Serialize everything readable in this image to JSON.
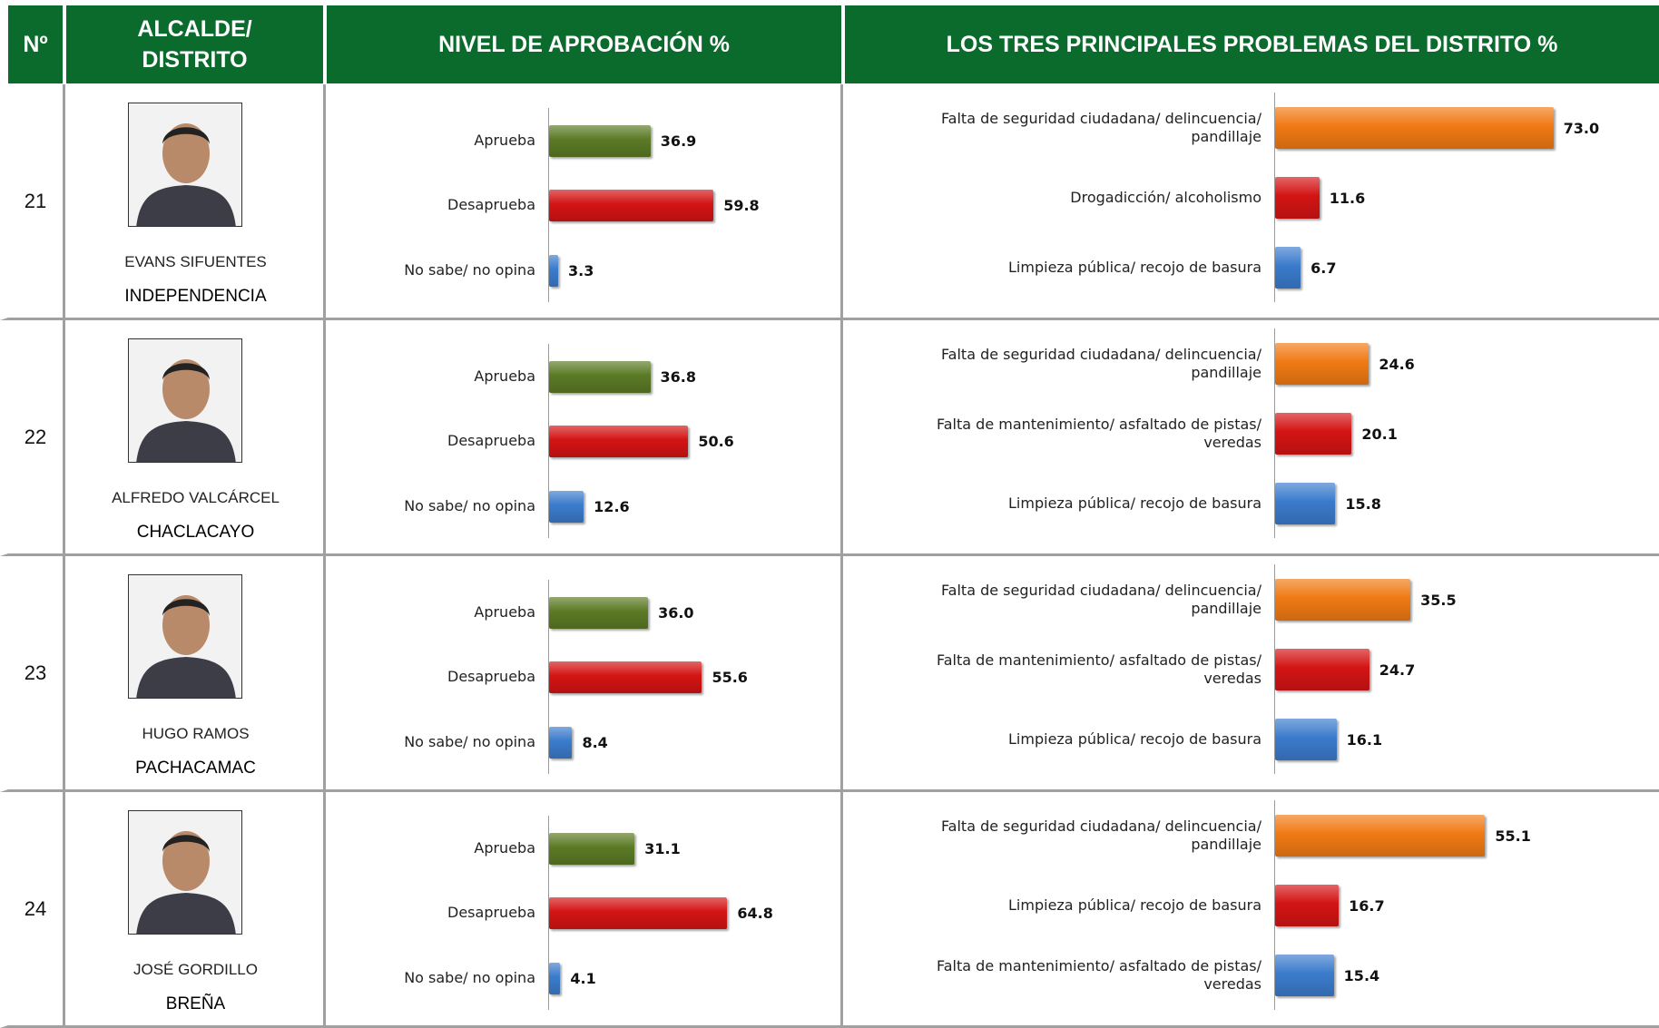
{
  "header": {
    "number": "Nº",
    "mayor": "ALCALDE/ DISTRITO",
    "approval": "NIVEL DE APROBACIÓN  %",
    "problems": "LOS TRES PRINCIPALES PROBLEMAS DEL DISTRITO  %"
  },
  "rows": [
    {
      "number": "21",
      "name": "EVANS SIFUENTES",
      "district": "INDEPENDENCIA",
      "approval": {
        "type": "bar",
        "categories": [
          "Aprueba",
          "Desaprueba",
          "No sabe/ no opina"
        ],
        "values": [
          36.9,
          59.8,
          3.3
        ],
        "value_labels": [
          "36.9",
          "59.8",
          "3.3"
        ],
        "colors": [
          "#5b7a25",
          "#d41414",
          "#3b7bcc"
        ]
      },
      "problems": {
        "type": "bar",
        "categories": [
          "Falta de seguridad ciudadana/ delincuencia/ pandillaje",
          "Drogadicción/ alcoholismo",
          "Limpieza pública/ recojo de basura"
        ],
        "values": [
          73.0,
          11.6,
          6.7
        ],
        "value_labels": [
          "73.0",
          "11.6",
          "6.7"
        ],
        "colors": [
          "#f07a14",
          "#d41414",
          "#3b7bcc"
        ]
      }
    },
    {
      "number": "22",
      "name": "ALFREDO VALCÁRCEL",
      "district": "CHACLACAYO",
      "approval": {
        "type": "bar",
        "categories": [
          "Aprueba",
          "Desaprueba",
          "No sabe/ no opina"
        ],
        "values": [
          36.8,
          50.6,
          12.6
        ],
        "value_labels": [
          "36.8",
          "50.6",
          "12.6"
        ],
        "colors": [
          "#5b7a25",
          "#d41414",
          "#3b7bcc"
        ]
      },
      "problems": {
        "type": "bar",
        "categories": [
          "Falta de seguridad ciudadana/ delincuencia/ pandillaje",
          "Falta de mantenimiento/ asfaltado de pistas/ veredas",
          "Limpieza pública/ recojo de basura"
        ],
        "values": [
          24.6,
          20.1,
          15.8
        ],
        "value_labels": [
          "24.6",
          "20.1",
          "15.8"
        ],
        "colors": [
          "#f07a14",
          "#d41414",
          "#3b7bcc"
        ]
      }
    },
    {
      "number": "23",
      "name": "HUGO RAMOS",
      "district": "PACHACAMAC",
      "approval": {
        "type": "bar",
        "categories": [
          "Aprueba",
          "Desaprueba",
          "No sabe/ no opina"
        ],
        "values": [
          36.0,
          55.6,
          8.4
        ],
        "value_labels": [
          "36.0",
          "55.6",
          "8.4"
        ],
        "colors": [
          "#5b7a25",
          "#d41414",
          "#3b7bcc"
        ]
      },
      "problems": {
        "type": "bar",
        "categories": [
          "Falta de seguridad ciudadana/ delincuencia/ pandillaje",
          "Falta de mantenimiento/ asfaltado de pistas/ veredas",
          "Limpieza pública/ recojo de basura"
        ],
        "values": [
          35.5,
          24.7,
          16.1
        ],
        "value_labels": [
          "35.5",
          "24.7",
          "16.1"
        ],
        "colors": [
          "#f07a14",
          "#d41414",
          "#3b7bcc"
        ]
      }
    },
    {
      "number": "24",
      "name": "JOSÉ GORDILLO",
      "district": "BREÑA",
      "approval": {
        "type": "bar",
        "categories": [
          "Aprueba",
          "Desaprueba",
          "No sabe/ no opina"
        ],
        "values": [
          31.1,
          64.8,
          4.1
        ],
        "value_labels": [
          "31.1",
          "64.8",
          "4.1"
        ],
        "colors": [
          "#5b7a25",
          "#d41414",
          "#3b7bcc"
        ]
      },
      "problems": {
        "type": "bar",
        "categories": [
          "Falta de seguridad ciudadana/ delincuencia/ pandillaje",
          "Limpieza pública/ recojo de basura",
          "Falta de mantenimiento/ asfaltado de pistas/ veredas"
        ],
        "values": [
          55.1,
          16.7,
          15.4
        ],
        "value_labels": [
          "55.1",
          "16.7",
          "15.4"
        ],
        "colors": [
          "#f07a14",
          "#d41414",
          "#3b7bcc"
        ]
      }
    }
  ]
}
